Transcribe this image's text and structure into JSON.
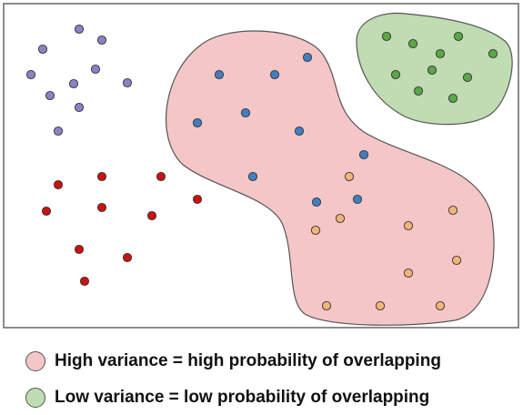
{
  "colors": {
    "purple": "#8f7fc6",
    "red": "#cc1111",
    "blue": "#3f7fc3",
    "orange": "#f2b577",
    "green_dot": "#5aa64a",
    "pink_region": "#f4c6c8",
    "green_region": "#c0dcb2",
    "outline": "#555555",
    "frame": "#666666"
  },
  "regions": [
    {
      "name": "high-variance-region",
      "fill": "pink_region"
    },
    {
      "name": "low-variance-region",
      "fill": "green_region"
    }
  ],
  "legend": [
    {
      "label": "High variance = high probability of overlapping",
      "color": "pink_region"
    },
    {
      "label": "Low variance = low probability of overlapping",
      "color": "green_region"
    }
  ]
}
